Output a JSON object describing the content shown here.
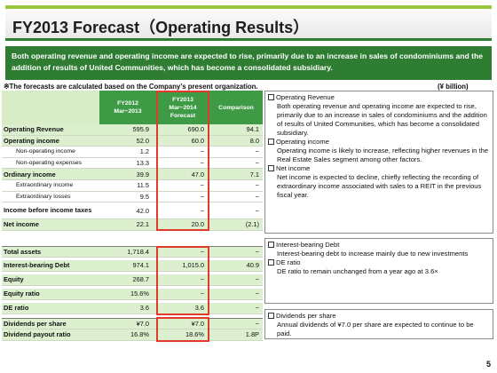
{
  "header": {
    "title": "FY2013 Forecast（Operating Results）"
  },
  "summary": "Both operating revenue and operating income are expected to rise, primarily due to an increase in sales of condominiums and the addition of results of United Communities, which has become a consolidated subsidiary.",
  "note": "※The forecasts are calculated based on the Company’s present organization.",
  "unit": "(¥ billion)",
  "table": {
    "headers": {
      "fy2012": [
        "FY2012",
        "Mar−2013"
      ],
      "fy2013": [
        "FY2013",
        "Mar−2014",
        "Forecast"
      ],
      "comparison": "Comparison"
    },
    "rows": [
      {
        "label": "Operating Revenue",
        "fy2012": "595.9",
        "fy2013": "690.0",
        "cmp": "94.1"
      },
      {
        "label": "Operating income",
        "fy2012": "52.0",
        "fy2013": "60.0",
        "cmp": "8.0"
      },
      {
        "label": "Non-operating income",
        "fy2012": "1.2",
        "fy2013": "−",
        "cmp": "−"
      },
      {
        "label": "Non-operating expenses",
        "fy2012": "13.3",
        "fy2013": "−",
        "cmp": "−"
      },
      {
        "label": "Ordinary income",
        "fy2012": "39.9",
        "fy2013": "47.0",
        "cmp": "7.1"
      },
      {
        "label": "Extraordinary income",
        "fy2012": "11.5",
        "fy2013": "−",
        "cmp": "−"
      },
      {
        "label": "Extraordinary losses",
        "fy2012": "9.5",
        "fy2013": "−",
        "cmp": "−"
      },
      {
        "label": "Income before income taxes",
        "fy2012": "42.0",
        "fy2013": "−",
        "cmp": "−"
      },
      {
        "label": "Net income",
        "fy2012": "22.1",
        "fy2013": "20.0",
        "cmp": "(2.1)"
      },
      {
        "label": "Total assets",
        "fy2012": "1,718.4",
        "fy2013": "−",
        "cmp": "−"
      },
      {
        "label": "Interest-bearing Debt",
        "fy2012": "974.1",
        "fy2013": "1,015.0",
        "cmp": "40.9"
      },
      {
        "label": "Equity",
        "fy2012": "268.7",
        "fy2013": "−",
        "cmp": "−"
      },
      {
        "label": "Equity ratio",
        "fy2012": "15.6%",
        "fy2013": "−",
        "cmp": "−"
      },
      {
        "label": "DE ratio",
        "fy2012": "3.6",
        "fy2013": "3.6",
        "cmp": "−"
      },
      {
        "label": "Dividends per share",
        "fy2012": "¥7.0",
        "fy2013": "¥7.0",
        "cmp": "−"
      },
      {
        "label": "Dividend payout ratio",
        "fy2012": "16.8%",
        "fy2013": "18.6%",
        "cmp": "1.8P"
      }
    ]
  },
  "commentary": {
    "box1": [
      {
        "title": "Operating Revenue",
        "body": "Both operating revenue and operating income are expected to rise, primarily due to an increase in sales of condominiums and the addition of results of United Communities, which has become a consolidated subsidiary."
      },
      {
        "title": "Operating income",
        "body": "Operating income is likely to increase, reflecting higher revenues in the Real Estate Sales segment among other factors."
      },
      {
        "title": "Net income",
        "body": "Net income is expected to decline, chiefly reflecting the recording of extraordinary income associated with sales to a REIT in the previous fiscal year."
      }
    ],
    "box2": [
      {
        "title": "Interest-bearing Debt",
        "body": "Interest-bearing debt to increase mainly due to new investments"
      },
      {
        "title": "DE ratio",
        "body": "DE ratio to remain unchanged from a year ago at 3.6×"
      }
    ],
    "box3": [
      {
        "title": "Dividends per share",
        "body": "Annual dividends of ¥7.0 per share are expected to continue to be paid."
      }
    ]
  },
  "page_number": "5"
}
